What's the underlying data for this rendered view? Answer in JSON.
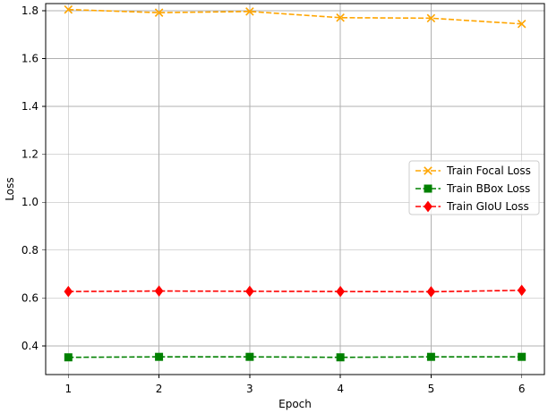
{
  "chart_data": {
    "type": "line",
    "title": "",
    "xlabel": "Epoch",
    "ylabel": "Loss",
    "x": [
      1,
      2,
      3,
      4,
      5,
      6
    ],
    "x_ticks": [
      "1",
      "2",
      "3",
      "4",
      "5",
      "6"
    ],
    "xlim": [
      0.75,
      6.25
    ],
    "ylim": [
      0.28,
      1.83
    ],
    "y_ticks": [
      0.4,
      0.6,
      0.8,
      1.0,
      1.2,
      1.4,
      1.6,
      1.8
    ],
    "y_tick_labels": [
      "0.4",
      "0.6",
      "0.8",
      "1.0",
      "1.2",
      "1.4",
      "1.6",
      "1.8"
    ],
    "grid": true,
    "legend_position": "center-right",
    "series": [
      {
        "name": "Train Focal Loss",
        "values": [
          1.805,
          1.792,
          1.797,
          1.771,
          1.769,
          1.745
        ],
        "color": "#ffa500",
        "marker": "x",
        "line_style": "dashed"
      },
      {
        "name": "Train BBox Loss",
        "values": [
          0.352,
          0.354,
          0.354,
          0.352,
          0.354,
          0.354
        ],
        "color": "#008000",
        "marker": "square",
        "line_style": "dashed"
      },
      {
        "name": "Train GIoU Loss",
        "values": [
          0.627,
          0.629,
          0.628,
          0.627,
          0.626,
          0.632
        ],
        "color": "#ff0000",
        "marker": "diamond",
        "line_style": "dashed"
      }
    ]
  }
}
